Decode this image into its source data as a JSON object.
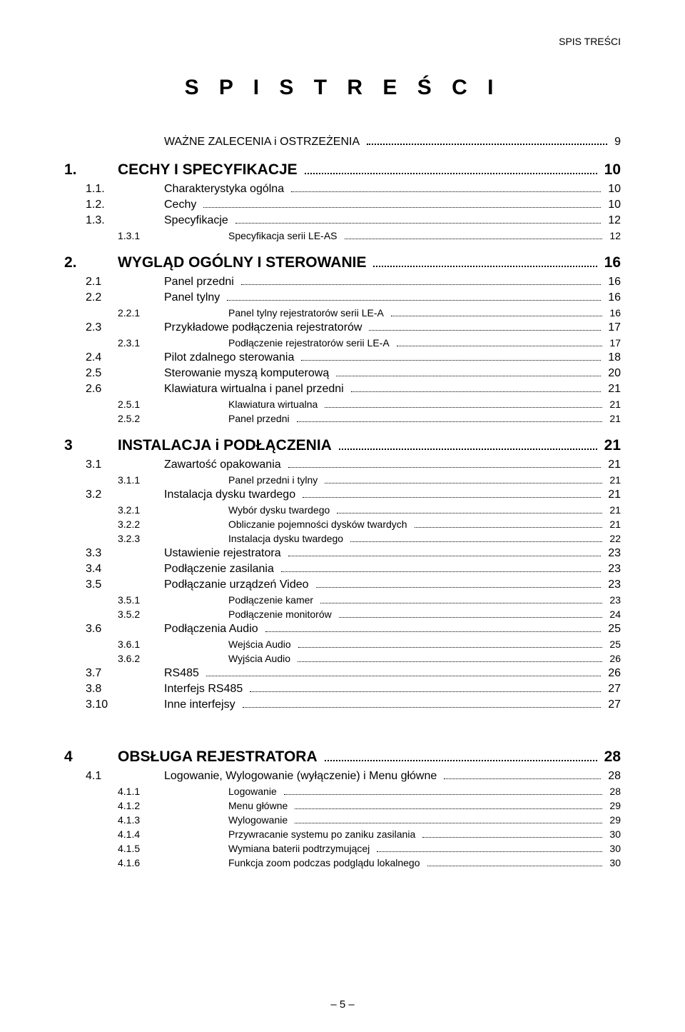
{
  "header_label": "SPIS TREŚCI",
  "main_title": "S P I S   T R E Ś C I",
  "page_footer": "– 5 –",
  "entries": [
    {
      "level": 1,
      "num": "",
      "label": "WAŻNE ZALECENIA i OSTRZEŻENIA",
      "page": "9",
      "standalone": true
    },
    {
      "level": 0,
      "num": "1.",
      "label": "CECHY I SPECYFIKACJE",
      "page": "10"
    },
    {
      "level": 1,
      "num": "1.1.",
      "label": "Charakterystyka ogólna",
      "page": "10"
    },
    {
      "level": 1,
      "num": "1.2.",
      "label": "Cechy",
      "page": "10"
    },
    {
      "level": 1,
      "num": "1.3.",
      "label": "Specyfikacje",
      "page": "12"
    },
    {
      "level": 2,
      "num": "1.3.1",
      "label": "Specyfikacja serii LE-AS",
      "page": "12"
    },
    {
      "level": 0,
      "num": "2.",
      "label": "WYGLĄD OGÓLNY I STEROWANIE",
      "page": "16"
    },
    {
      "level": 1,
      "num": "2.1",
      "label": "Panel przedni",
      "page": "16"
    },
    {
      "level": 1,
      "num": "2.2",
      "label": "Panel tylny",
      "page": "16"
    },
    {
      "level": 2,
      "num": "2.2.1",
      "label": "Panel tylny rejestratorów serii LE-A",
      "page": "16"
    },
    {
      "level": 1,
      "num": "2.3",
      "label": "Przykładowe podłączenia rejestratorów",
      "page": "17"
    },
    {
      "level": 2,
      "num": "2.3.1",
      "label": "Podłączenie rejestratorów serii LE-A",
      "page": "17"
    },
    {
      "level": 1,
      "num": "2.4",
      "label": "Pilot zdalnego sterowania",
      "page": "18"
    },
    {
      "level": 1,
      "num": "2.5",
      "label": "Sterowanie myszą komputerową",
      "page": "20"
    },
    {
      "level": 1,
      "num": "2.6",
      "label": "Klawiatura wirtualna i panel przedni",
      "page": "21"
    },
    {
      "level": 2,
      "num": "2.5.1",
      "label": "Klawiatura wirtualna",
      "page": "21"
    },
    {
      "level": 2,
      "num": "2.5.2",
      "label": "Panel przedni",
      "page": "21"
    },
    {
      "level": 0,
      "num": "3",
      "label": "INSTALACJA i PODŁĄCZENIA",
      "page": "21"
    },
    {
      "level": 1,
      "num": "3.1",
      "label": "Zawartość opakowania",
      "page": "21"
    },
    {
      "level": 2,
      "num": "3.1.1",
      "label": "Panel przedni i tylny",
      "page": "21"
    },
    {
      "level": 1,
      "num": "3.2",
      "label": "Instalacja dysku twardego",
      "page": "21"
    },
    {
      "level": 2,
      "num": "3.2.1",
      "label": "Wybór dysku twardego",
      "page": "21"
    },
    {
      "level": 2,
      "num": "3.2.2",
      "label": "Obliczanie pojemności dysków twardych",
      "page": "21"
    },
    {
      "level": 2,
      "num": "3.2.3",
      "label": "Instalacja dysku twardego",
      "page": "22"
    },
    {
      "level": 1,
      "num": "3.3",
      "label": "Ustawienie rejestratora",
      "page": "23"
    },
    {
      "level": 1,
      "num": "3.4",
      "label": "Podłączenie zasilania",
      "page": "23"
    },
    {
      "level": 1,
      "num": "3.5",
      "label": "Podłączanie urządzeń Video",
      "page": "23"
    },
    {
      "level": 2,
      "num": "3.5.1",
      "label": "Podłączenie kamer",
      "page": "23"
    },
    {
      "level": 2,
      "num": "3.5.2",
      "label": "Podłączenie monitorów",
      "page": "24"
    },
    {
      "level": 1,
      "num": "3.6",
      "label": "Podłączenia Audio",
      "page": "25"
    },
    {
      "level": 2,
      "num": "3.6.1",
      "label": "Wejścia Audio",
      "page": "25"
    },
    {
      "level": 2,
      "num": "3.6.2",
      "label": "Wyjścia Audio",
      "page": "26"
    },
    {
      "level": 1,
      "num": "3.7",
      "label": "RS485",
      "page": "26"
    },
    {
      "level": 1,
      "num": "3.8",
      "label": "Interfejs RS485",
      "page": "27"
    },
    {
      "level": 1,
      "num": "3.10",
      "label": "Inne interfejsy",
      "page": "27"
    },
    {
      "spacer": "lg"
    },
    {
      "level": 0,
      "num": "4",
      "label": "OBSŁUGA REJESTRATORA",
      "page": "28"
    },
    {
      "level": 1,
      "num": "4.1",
      "label": "Logowanie, Wylogowanie (wyłączenie) i Menu główne",
      "page": "28"
    },
    {
      "level": 2,
      "num": "4.1.1",
      "label": "Logowanie",
      "page": "28"
    },
    {
      "level": 2,
      "num": "4.1.2",
      "label": "Menu główne",
      "page": "29"
    },
    {
      "level": 2,
      "num": "4.1.3",
      "label": "Wylogowanie",
      "page": "29"
    },
    {
      "level": 2,
      "num": "4.1.4",
      "label": "Przywracanie systemu po zaniku zasilania",
      "page": "30"
    },
    {
      "level": 2,
      "num": "4.1.5",
      "label": "Wymiana baterii podtrzymującej",
      "page": "30"
    },
    {
      "level": 2,
      "num": "4.1.6",
      "label": "Funkcja zoom podczas podglądu lokalnego",
      "page": "30"
    }
  ]
}
